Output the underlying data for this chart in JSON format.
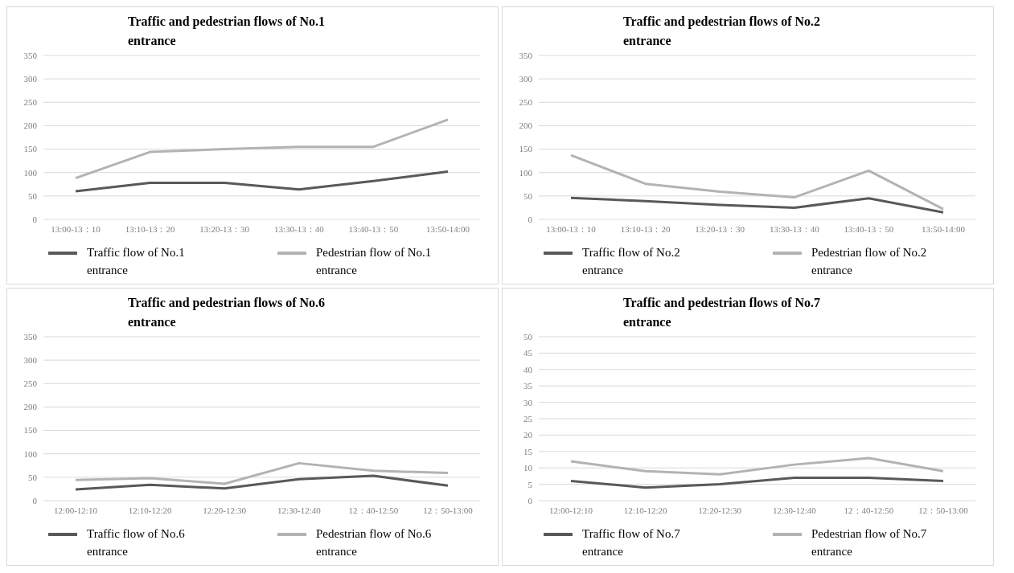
{
  "chart_data": [
    {
      "type": "line",
      "title": "Traffic and pedestrian flows of No.1 entrance",
      "categories": [
        "13:00-13：10",
        "13:10-13：20",
        "13:20-13：30",
        "13:30-13：40",
        "13:40-13：50",
        "13:50-14:00"
      ],
      "series": [
        {
          "name": "Traffic flow of No.1 entrance",
          "color": "#595959",
          "values": [
            60,
            78,
            78,
            64,
            82,
            102
          ]
        },
        {
          "name": "Pedestrian flow of No.1 entrance",
          "color": "#b3b3b3",
          "values": [
            88,
            144,
            150,
            155,
            155,
            213
          ]
        }
      ],
      "ylim": [
        0,
        350
      ],
      "yticks": [
        0,
        50,
        100,
        150,
        200,
        250,
        300,
        350
      ],
      "grid": "y",
      "legend": "bottom",
      "marker": "none",
      "line_style": "solid"
    },
    {
      "type": "line",
      "title": "Traffic and pedestrian flows of No.2 entrance",
      "categories": [
        "13:00-13：10",
        "13:10-13：20",
        "13:20-13：30",
        "13:30-13：40",
        "13:40-13：50",
        "13:50-14:00"
      ],
      "series": [
        {
          "name": "Traffic flow of No.2 entrance",
          "color": "#595959",
          "values": [
            46,
            39,
            31,
            25,
            45,
            15
          ]
        },
        {
          "name": "Pedestrian flow of No.2 entrance",
          "color": "#b3b3b3",
          "values": [
            137,
            76,
            59,
            47,
            104,
            22
          ]
        }
      ],
      "ylim": [
        0,
        350
      ],
      "yticks": [
        0,
        50,
        100,
        150,
        200,
        250,
        300,
        350
      ],
      "grid": "y",
      "legend": "bottom",
      "marker": "none",
      "line_style": "solid"
    },
    {
      "type": "line",
      "title": "Traffic and pedestrian flows of No.6 entrance",
      "categories": [
        "12:00-12:10",
        "12:10-12:20",
        "12:20-12:30",
        "12:30-12:40",
        "12：40-12:50",
        "12：50-13:00"
      ],
      "series": [
        {
          "name": "Traffic flow of No.6 entrance",
          "color": "#595959",
          "values": [
            24,
            34,
            26,
            46,
            53,
            32
          ]
        },
        {
          "name": "Pedestrian flow of No.6 entrance",
          "color": "#b3b3b3",
          "values": [
            44,
            48,
            36,
            80,
            64,
            59
          ]
        }
      ],
      "ylim": [
        0,
        350
      ],
      "yticks": [
        0,
        50,
        100,
        150,
        200,
        250,
        300,
        350
      ],
      "grid": "y",
      "legend": "bottom",
      "marker": "none",
      "line_style": "solid"
    },
    {
      "type": "line",
      "title": "Traffic and pedestrian flows of No.7 entrance",
      "categories": [
        "12:00-12:10",
        "12:10-12:20",
        "12:20-12:30",
        "12:30-12:40",
        "12：40-12:50",
        "12：50-13:00"
      ],
      "series": [
        {
          "name": "Traffic flow of No.7 entrance",
          "color": "#595959",
          "values": [
            6,
            4,
            5,
            7,
            7,
            6
          ]
        },
        {
          "name": "Pedestrian flow of No.7 entrance",
          "color": "#b3b3b3",
          "values": [
            12,
            9,
            8,
            11,
            13,
            9
          ]
        }
      ],
      "ylim": [
        0,
        50
      ],
      "yticks": [
        0,
        5,
        10,
        15,
        20,
        25,
        30,
        35,
        40,
        45,
        50
      ],
      "grid": "y",
      "legend": "bottom",
      "marker": "none",
      "line_style": "solid"
    }
  ]
}
